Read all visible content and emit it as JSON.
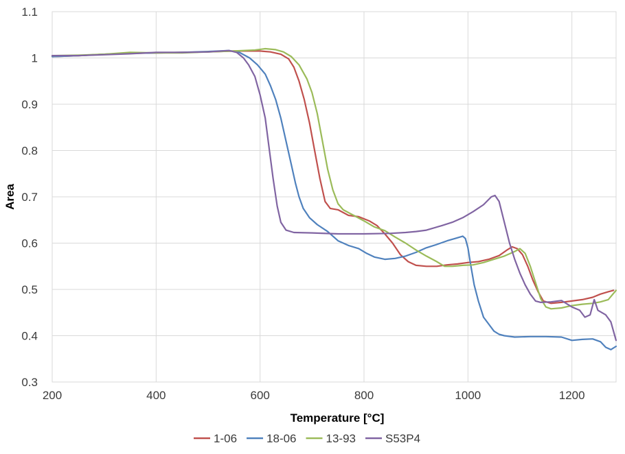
{
  "chart_data": {
    "type": "line",
    "title": "",
    "xlabel": "Temperature [°C]",
    "ylabel": "Area",
    "xlim": [
      200,
      1285
    ],
    "ylim": [
      0.3,
      1.1
    ],
    "xticks": [
      200,
      400,
      600,
      800,
      1000,
      1200
    ],
    "yticks": [
      0.3,
      0.4,
      0.5,
      0.6,
      0.7,
      0.8,
      0.9,
      1,
      1.1
    ],
    "ytick_labels": [
      "0.3",
      "0.4",
      "0.5",
      "0.6",
      "0.7",
      "0.8",
      "0.9",
      "1",
      "1.1"
    ],
    "grid": true,
    "legend": "bottom",
    "series": [
      {
        "name": "1-06",
        "color": "#c0504d",
        "points": [
          [
            200,
            1.003
          ],
          [
            250,
            1.005
          ],
          [
            300,
            1.008
          ],
          [
            350,
            1.01
          ],
          [
            400,
            1.011
          ],
          [
            450,
            1.012
          ],
          [
            500,
            1.013
          ],
          [
            550,
            1.015
          ],
          [
            600,
            1.015
          ],
          [
            620,
            1.013
          ],
          [
            640,
            1.008
          ],
          [
            655,
            0.998
          ],
          [
            665,
            0.98
          ],
          [
            675,
            0.95
          ],
          [
            685,
            0.91
          ],
          [
            695,
            0.86
          ],
          [
            705,
            0.8
          ],
          [
            715,
            0.74
          ],
          [
            725,
            0.69
          ],
          [
            735,
            0.675
          ],
          [
            750,
            0.672
          ],
          [
            770,
            0.66
          ],
          [
            790,
            0.657
          ],
          [
            810,
            0.648
          ],
          [
            825,
            0.638
          ],
          [
            840,
            0.62
          ],
          [
            855,
            0.6
          ],
          [
            870,
            0.575
          ],
          [
            885,
            0.56
          ],
          [
            900,
            0.552
          ],
          [
            920,
            0.55
          ],
          [
            940,
            0.55
          ],
          [
            960,
            0.553
          ],
          [
            980,
            0.555
          ],
          [
            1000,
            0.558
          ],
          [
            1020,
            0.56
          ],
          [
            1040,
            0.565
          ],
          [
            1060,
            0.573
          ],
          [
            1075,
            0.585
          ],
          [
            1085,
            0.592
          ],
          [
            1095,
            0.588
          ],
          [
            1105,
            0.575
          ],
          [
            1115,
            0.55
          ],
          [
            1125,
            0.52
          ],
          [
            1135,
            0.495
          ],
          [
            1145,
            0.475
          ],
          [
            1160,
            0.47
          ],
          [
            1180,
            0.472
          ],
          [
            1200,
            0.475
          ],
          [
            1220,
            0.478
          ],
          [
            1240,
            0.483
          ],
          [
            1255,
            0.49
          ],
          [
            1270,
            0.495
          ],
          [
            1280,
            0.498
          ]
        ]
      },
      {
        "name": "18-06",
        "color": "#4f81bd",
        "points": [
          [
            200,
            1.003
          ],
          [
            250,
            1.005
          ],
          [
            300,
            1.008
          ],
          [
            350,
            1.01
          ],
          [
            400,
            1.011
          ],
          [
            450,
            1.012
          ],
          [
            500,
            1.014
          ],
          [
            540,
            1.016
          ],
          [
            560,
            1.012
          ],
          [
            580,
            1.0
          ],
          [
            595,
            0.985
          ],
          [
            610,
            0.965
          ],
          [
            620,
            0.94
          ],
          [
            630,
            0.91
          ],
          [
            640,
            0.87
          ],
          [
            650,
            0.82
          ],
          [
            660,
            0.77
          ],
          [
            668,
            0.73
          ],
          [
            675,
            0.7
          ],
          [
            683,
            0.675
          ],
          [
            695,
            0.655
          ],
          [
            710,
            0.64
          ],
          [
            730,
            0.625
          ],
          [
            750,
            0.605
          ],
          [
            770,
            0.595
          ],
          [
            790,
            0.588
          ],
          [
            805,
            0.578
          ],
          [
            820,
            0.57
          ],
          [
            840,
            0.565
          ],
          [
            860,
            0.567
          ],
          [
            880,
            0.572
          ],
          [
            900,
            0.58
          ],
          [
            920,
            0.59
          ],
          [
            940,
            0.597
          ],
          [
            960,
            0.605
          ],
          [
            975,
            0.61
          ],
          [
            990,
            0.615
          ],
          [
            995,
            0.61
          ],
          [
            1000,
            0.59
          ],
          [
            1005,
            0.555
          ],
          [
            1012,
            0.51
          ],
          [
            1020,
            0.475
          ],
          [
            1030,
            0.44
          ],
          [
            1040,
            0.425
          ],
          [
            1050,
            0.41
          ],
          [
            1060,
            0.403
          ],
          [
            1070,
            0.4
          ],
          [
            1090,
            0.397
          ],
          [
            1120,
            0.398
          ],
          [
            1150,
            0.398
          ],
          [
            1180,
            0.397
          ],
          [
            1200,
            0.39
          ],
          [
            1220,
            0.392
          ],
          [
            1240,
            0.393
          ],
          [
            1255,
            0.387
          ],
          [
            1265,
            0.375
          ],
          [
            1275,
            0.37
          ],
          [
            1285,
            0.377
          ]
        ]
      },
      {
        "name": "13-93",
        "color": "#9bbb59",
        "points": [
          [
            200,
            1.005
          ],
          [
            250,
            1.006
          ],
          [
            300,
            1.008
          ],
          [
            350,
            1.012
          ],
          [
            400,
            1.011
          ],
          [
            450,
            1.011
          ],
          [
            500,
            1.013
          ],
          [
            550,
            1.015
          ],
          [
            590,
            1.017
          ],
          [
            610,
            1.02
          ],
          [
            630,
            1.018
          ],
          [
            645,
            1.013
          ],
          [
            660,
            1.003
          ],
          [
            675,
            0.985
          ],
          [
            690,
            0.955
          ],
          [
            700,
            0.925
          ],
          [
            710,
            0.88
          ],
          [
            720,
            0.82
          ],
          [
            730,
            0.76
          ],
          [
            740,
            0.715
          ],
          [
            750,
            0.685
          ],
          [
            760,
            0.672
          ],
          [
            780,
            0.66
          ],
          [
            800,
            0.648
          ],
          [
            820,
            0.635
          ],
          [
            840,
            0.627
          ],
          [
            860,
            0.613
          ],
          [
            880,
            0.6
          ],
          [
            900,
            0.585
          ],
          [
            920,
            0.572
          ],
          [
            940,
            0.56
          ],
          [
            955,
            0.55
          ],
          [
            970,
            0.55
          ],
          [
            990,
            0.552
          ],
          [
            1010,
            0.553
          ],
          [
            1030,
            0.558
          ],
          [
            1050,
            0.565
          ],
          [
            1070,
            0.572
          ],
          [
            1090,
            0.582
          ],
          [
            1100,
            0.588
          ],
          [
            1110,
            0.578
          ],
          [
            1120,
            0.55
          ],
          [
            1130,
            0.515
          ],
          [
            1140,
            0.48
          ],
          [
            1150,
            0.462
          ],
          [
            1160,
            0.458
          ],
          [
            1180,
            0.46
          ],
          [
            1200,
            0.465
          ],
          [
            1220,
            0.468
          ],
          [
            1240,
            0.47
          ],
          [
            1255,
            0.473
          ],
          [
            1270,
            0.478
          ],
          [
            1285,
            0.498
          ]
        ]
      },
      {
        "name": "S53P4",
        "color": "#8064a2",
        "points": [
          [
            200,
            1.005
          ],
          [
            250,
            1.005
          ],
          [
            300,
            1.007
          ],
          [
            350,
            1.009
          ],
          [
            400,
            1.012
          ],
          [
            450,
            1.012
          ],
          [
            500,
            1.013
          ],
          [
            540,
            1.016
          ],
          [
            555,
            1.012
          ],
          [
            568,
            1.0
          ],
          [
            578,
            0.985
          ],
          [
            590,
            0.96
          ],
          [
            600,
            0.92
          ],
          [
            610,
            0.87
          ],
          [
            618,
            0.8
          ],
          [
            625,
            0.74
          ],
          [
            633,
            0.68
          ],
          [
            640,
            0.645
          ],
          [
            650,
            0.628
          ],
          [
            665,
            0.623
          ],
          [
            700,
            0.622
          ],
          [
            750,
            0.62
          ],
          [
            800,
            0.62
          ],
          [
            850,
            0.621
          ],
          [
            880,
            0.623
          ],
          [
            900,
            0.625
          ],
          [
            920,
            0.628
          ],
          [
            950,
            0.638
          ],
          [
            970,
            0.645
          ],
          [
            990,
            0.655
          ],
          [
            1010,
            0.668
          ],
          [
            1030,
            0.683
          ],
          [
            1045,
            0.7
          ],
          [
            1052,
            0.703
          ],
          [
            1060,
            0.69
          ],
          [
            1070,
            0.645
          ],
          [
            1080,
            0.6
          ],
          [
            1090,
            0.565
          ],
          [
            1100,
            0.535
          ],
          [
            1110,
            0.51
          ],
          [
            1120,
            0.49
          ],
          [
            1130,
            0.475
          ],
          [
            1140,
            0.472
          ],
          [
            1160,
            0.473
          ],
          [
            1180,
            0.476
          ],
          [
            1200,
            0.462
          ],
          [
            1215,
            0.455
          ],
          [
            1225,
            0.44
          ],
          [
            1235,
            0.445
          ],
          [
            1243,
            0.478
          ],
          [
            1250,
            0.455
          ],
          [
            1265,
            0.445
          ],
          [
            1275,
            0.43
          ],
          [
            1285,
            0.39
          ]
        ]
      }
    ]
  }
}
